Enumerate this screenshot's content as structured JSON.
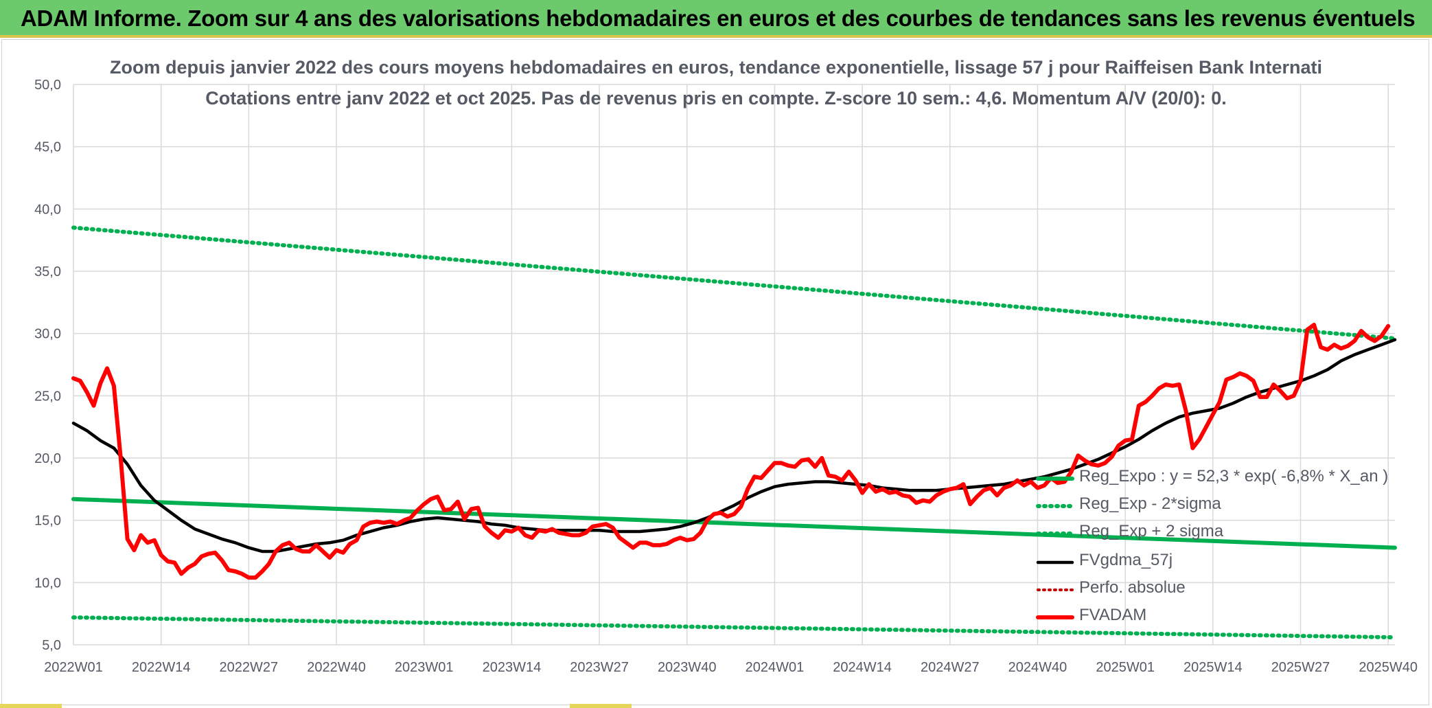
{
  "banner": {
    "title": "ADAM Informe. Zoom sur 4 ans des valorisations hebdomadaires en euros et des courbes de tendances sans les revenus éventuels"
  },
  "colors": {
    "banner_bg": "#6cc96c",
    "reg_expo": "#00b050",
    "fvgdma": "#000000",
    "fvadam": "#ff0000",
    "perfo": "#c00000",
    "text": "#555a64",
    "grid": "#d9d9d9"
  },
  "chart_data": {
    "type": "line",
    "title": "Zoom depuis janvier 2022 des cours moyens hebdomadaires en euros, tendance exponentielle, lissage 57 j pour Raiffeisen Bank Internati",
    "subtitle": "Cotations entre janv 2022 et oct 2025. Pas de revenus pris en compte. Z-score 10 sem.: 4,6. Momentum A/V (20/0): 0.",
    "xlabel": "",
    "ylabel": "",
    "ylim": [
      5,
      50
    ],
    "yticks": [
      "50,0",
      "45,0",
      "40,0",
      "35,0",
      "30,0",
      "25,0",
      "20,0",
      "15,0",
      "10,0",
      "5,0"
    ],
    "ytick_values": [
      50,
      45,
      40,
      35,
      30,
      25,
      20,
      15,
      10,
      5
    ],
    "xlim": [
      0,
      196
    ],
    "xticks": [
      "2022W01",
      "2022W14",
      "2022W27",
      "2022W40",
      "2023W01",
      "2023W14",
      "2023W27",
      "2023W40",
      "2024W01",
      "2024W14",
      "2024W27",
      "2024W40",
      "2025W01",
      "2025W14",
      "2025W27",
      "2025W40"
    ],
    "xtick_positions": [
      0,
      13,
      26,
      39,
      52,
      65,
      78,
      91,
      104,
      117,
      130,
      143,
      156,
      169,
      182,
      195
    ],
    "grid": true,
    "legend_position": "bottom-right",
    "series": [
      {
        "name": "Reg_Expo : y = 52,3 * exp( -6,8% *  X_an )",
        "style": "solid-green",
        "points": [
          [
            0,
            16.7
          ],
          [
            196,
            12.8
          ]
        ]
      },
      {
        "name": "Reg_Exp - 2*sigma",
        "style": "dotted-green",
        "points": [
          [
            0,
            7.2
          ],
          [
            196,
            5.6
          ]
        ]
      },
      {
        "name": "Reg_Exp + 2 sigma",
        "style": "dotted-green",
        "points": [
          [
            0,
            38.5
          ],
          [
            196,
            29.6
          ]
        ]
      },
      {
        "name": "FVgdma_57j",
        "style": "solid-black",
        "points": [
          [
            0,
            22.8
          ],
          [
            2,
            22.2
          ],
          [
            4,
            21.4
          ],
          [
            6,
            20.8
          ],
          [
            8,
            19.5
          ],
          [
            10,
            17.8
          ],
          [
            12,
            16.6
          ],
          [
            14,
            15.8
          ],
          [
            16,
            15.0
          ],
          [
            18,
            14.3
          ],
          [
            20,
            13.9
          ],
          [
            22,
            13.5
          ],
          [
            24,
            13.2
          ],
          [
            26,
            12.8
          ],
          [
            28,
            12.5
          ],
          [
            30,
            12.5
          ],
          [
            32,
            12.7
          ],
          [
            34,
            12.9
          ],
          [
            36,
            13.1
          ],
          [
            38,
            13.2
          ],
          [
            40,
            13.4
          ],
          [
            42,
            13.8
          ],
          [
            44,
            14.1
          ],
          [
            46,
            14.4
          ],
          [
            48,
            14.6
          ],
          [
            50,
            14.9
          ],
          [
            52,
            15.1
          ],
          [
            54,
            15.2
          ],
          [
            56,
            15.1
          ],
          [
            58,
            15.0
          ],
          [
            60,
            14.9
          ],
          [
            62,
            14.7
          ],
          [
            64,
            14.6
          ],
          [
            66,
            14.4
          ],
          [
            68,
            14.3
          ],
          [
            70,
            14.2
          ],
          [
            72,
            14.2
          ],
          [
            74,
            14.2
          ],
          [
            76,
            14.2
          ],
          [
            78,
            14.2
          ],
          [
            80,
            14.1
          ],
          [
            82,
            14.1
          ],
          [
            84,
            14.1
          ],
          [
            86,
            14.2
          ],
          [
            88,
            14.3
          ],
          [
            90,
            14.5
          ],
          [
            92,
            14.8
          ],
          [
            94,
            15.2
          ],
          [
            96,
            15.7
          ],
          [
            98,
            16.2
          ],
          [
            100,
            16.8
          ],
          [
            102,
            17.3
          ],
          [
            104,
            17.7
          ],
          [
            106,
            17.9
          ],
          [
            108,
            18.0
          ],
          [
            110,
            18.1
          ],
          [
            112,
            18.1
          ],
          [
            114,
            18.0
          ],
          [
            116,
            17.9
          ],
          [
            118,
            17.8
          ],
          [
            120,
            17.6
          ],
          [
            122,
            17.5
          ],
          [
            124,
            17.4
          ],
          [
            126,
            17.4
          ],
          [
            128,
            17.4
          ],
          [
            130,
            17.5
          ],
          [
            132,
            17.6
          ],
          [
            134,
            17.7
          ],
          [
            136,
            17.8
          ],
          [
            138,
            17.9
          ],
          [
            140,
            18.1
          ],
          [
            142,
            18.3
          ],
          [
            144,
            18.5
          ],
          [
            146,
            18.8
          ],
          [
            148,
            19.1
          ],
          [
            150,
            19.5
          ],
          [
            152,
            19.9
          ],
          [
            154,
            20.4
          ],
          [
            156,
            20.9
          ],
          [
            158,
            21.5
          ],
          [
            160,
            22.2
          ],
          [
            162,
            22.8
          ],
          [
            164,
            23.3
          ],
          [
            166,
            23.6
          ],
          [
            168,
            23.8
          ],
          [
            170,
            24.0
          ],
          [
            172,
            24.4
          ],
          [
            174,
            24.9
          ],
          [
            176,
            25.3
          ],
          [
            178,
            25.6
          ],
          [
            180,
            25.9
          ],
          [
            182,
            26.2
          ],
          [
            184,
            26.6
          ],
          [
            186,
            27.1
          ],
          [
            188,
            27.8
          ],
          [
            190,
            28.3
          ],
          [
            192,
            28.7
          ],
          [
            194,
            29.1
          ],
          [
            196,
            29.5
          ]
        ]
      },
      {
        "name": "Perfo. absolue",
        "style": "dotted-red",
        "points": []
      },
      {
        "name": "FVADAM",
        "style": "solid-red",
        "points": [
          [
            0,
            26.4
          ],
          [
            1,
            26.2
          ],
          [
            2,
            25.3
          ],
          [
            3,
            24.2
          ],
          [
            4,
            26.0
          ],
          [
            5,
            27.2
          ],
          [
            6,
            25.8
          ],
          [
            7,
            20.0
          ],
          [
            8,
            13.5
          ],
          [
            9,
            12.6
          ],
          [
            10,
            13.8
          ],
          [
            11,
            13.2
          ],
          [
            12,
            13.4
          ],
          [
            13,
            12.2
          ],
          [
            14,
            11.7
          ],
          [
            15,
            11.6
          ],
          [
            16,
            10.7
          ],
          [
            17,
            11.2
          ],
          [
            18,
            11.5
          ],
          [
            19,
            12.1
          ],
          [
            20,
            12.3
          ],
          [
            21,
            12.4
          ],
          [
            22,
            11.8
          ],
          [
            23,
            11.0
          ],
          [
            24,
            10.9
          ],
          [
            25,
            10.7
          ],
          [
            26,
            10.4
          ],
          [
            27,
            10.4
          ],
          [
            28,
            10.9
          ],
          [
            29,
            11.5
          ],
          [
            30,
            12.5
          ],
          [
            31,
            13.0
          ],
          [
            32,
            13.2
          ],
          [
            33,
            12.7
          ],
          [
            34,
            12.5
          ],
          [
            35,
            12.5
          ],
          [
            36,
            13.0
          ],
          [
            37,
            12.5
          ],
          [
            38,
            12.0
          ],
          [
            39,
            12.6
          ],
          [
            40,
            12.4
          ],
          [
            41,
            13.1
          ],
          [
            42,
            13.4
          ],
          [
            43,
            14.5
          ],
          [
            44,
            14.8
          ],
          [
            45,
            14.9
          ],
          [
            46,
            14.8
          ],
          [
            47,
            14.9
          ],
          [
            48,
            14.7
          ],
          [
            49,
            15.0
          ],
          [
            50,
            15.2
          ],
          [
            51,
            15.8
          ],
          [
            52,
            16.3
          ],
          [
            53,
            16.7
          ],
          [
            54,
            16.9
          ],
          [
            55,
            15.8
          ],
          [
            56,
            15.9
          ],
          [
            57,
            16.5
          ],
          [
            58,
            15.1
          ],
          [
            59,
            15.9
          ],
          [
            60,
            16.0
          ],
          [
            61,
            14.5
          ],
          [
            62,
            14.0
          ],
          [
            63,
            13.6
          ],
          [
            64,
            14.2
          ],
          [
            65,
            14.1
          ],
          [
            66,
            14.4
          ],
          [
            67,
            13.8
          ],
          [
            68,
            13.6
          ],
          [
            69,
            14.2
          ],
          [
            70,
            14.1
          ],
          [
            71,
            14.3
          ],
          [
            72,
            14.0
          ],
          [
            73,
            13.9
          ],
          [
            74,
            13.8
          ],
          [
            75,
            13.8
          ],
          [
            76,
            14.0
          ],
          [
            77,
            14.5
          ],
          [
            78,
            14.6
          ],
          [
            79,
            14.7
          ],
          [
            80,
            14.4
          ],
          [
            81,
            13.6
          ],
          [
            82,
            13.2
          ],
          [
            83,
            12.8
          ],
          [
            84,
            13.2
          ],
          [
            85,
            13.2
          ],
          [
            86,
            13.0
          ],
          [
            87,
            13.0
          ],
          [
            88,
            13.1
          ],
          [
            89,
            13.4
          ],
          [
            90,
            13.6
          ],
          [
            91,
            13.4
          ],
          [
            92,
            13.5
          ],
          [
            93,
            14.0
          ],
          [
            94,
            15.0
          ],
          [
            95,
            15.5
          ],
          [
            96,
            15.6
          ],
          [
            97,
            15.3
          ],
          [
            98,
            15.5
          ],
          [
            99,
            16.1
          ],
          [
            100,
            17.5
          ],
          [
            101,
            18.5
          ],
          [
            102,
            18.4
          ],
          [
            103,
            19.0
          ],
          [
            104,
            19.6
          ],
          [
            105,
            19.6
          ],
          [
            106,
            19.4
          ],
          [
            107,
            19.3
          ],
          [
            108,
            19.8
          ],
          [
            109,
            19.9
          ],
          [
            110,
            19.3
          ],
          [
            111,
            20.0
          ],
          [
            112,
            18.6
          ],
          [
            113,
            18.5
          ],
          [
            114,
            18.2
          ],
          [
            115,
            18.9
          ],
          [
            116,
            18.2
          ],
          [
            117,
            17.2
          ],
          [
            118,
            17.9
          ],
          [
            119,
            17.3
          ],
          [
            120,
            17.5
          ],
          [
            121,
            17.2
          ],
          [
            122,
            17.3
          ],
          [
            123,
            17.0
          ],
          [
            124,
            16.9
          ],
          [
            125,
            16.4
          ],
          [
            126,
            16.6
          ],
          [
            127,
            16.5
          ],
          [
            128,
            17.0
          ],
          [
            129,
            17.3
          ],
          [
            130,
            17.5
          ],
          [
            131,
            17.6
          ],
          [
            132,
            17.9
          ],
          [
            133,
            16.3
          ],
          [
            134,
            16.9
          ],
          [
            135,
            17.4
          ],
          [
            136,
            17.6
          ],
          [
            137,
            17.0
          ],
          [
            138,
            17.6
          ],
          [
            139,
            17.8
          ],
          [
            140,
            18.2
          ],
          [
            141,
            17.8
          ],
          [
            142,
            18.1
          ],
          [
            143,
            17.6
          ],
          [
            144,
            17.8
          ],
          [
            145,
            18.4
          ],
          [
            146,
            18.0
          ],
          [
            147,
            18.1
          ],
          [
            148,
            18.9
          ],
          [
            149,
            20.2
          ],
          [
            150,
            19.8
          ],
          [
            151,
            19.5
          ],
          [
            152,
            19.4
          ],
          [
            153,
            19.6
          ],
          [
            154,
            20.1
          ],
          [
            155,
            21.0
          ],
          [
            156,
            21.4
          ],
          [
            157,
            21.5
          ],
          [
            158,
            24.2
          ],
          [
            159,
            24.5
          ],
          [
            160,
            25.0
          ],
          [
            161,
            25.6
          ],
          [
            162,
            25.9
          ],
          [
            163,
            25.8
          ],
          [
            164,
            25.9
          ],
          [
            165,
            23.8
          ],
          [
            166,
            20.8
          ],
          [
            167,
            21.5
          ],
          [
            168,
            22.5
          ],
          [
            169,
            23.5
          ],
          [
            170,
            24.5
          ],
          [
            171,
            26.3
          ],
          [
            172,
            26.5
          ],
          [
            173,
            26.8
          ],
          [
            174,
            26.6
          ],
          [
            175,
            26.2
          ],
          [
            176,
            24.9
          ],
          [
            177,
            24.9
          ],
          [
            178,
            25.9
          ],
          [
            179,
            25.4
          ],
          [
            180,
            24.8
          ],
          [
            181,
            25.0
          ],
          [
            182,
            26.2
          ],
          [
            183,
            30.3
          ],
          [
            184,
            30.7
          ],
          [
            185,
            28.9
          ],
          [
            186,
            28.7
          ],
          [
            187,
            29.1
          ],
          [
            188,
            28.8
          ],
          [
            189,
            29.0
          ],
          [
            190,
            29.4
          ],
          [
            191,
            30.2
          ],
          [
            192,
            29.7
          ],
          [
            193,
            29.4
          ],
          [
            194,
            29.8
          ],
          [
            195,
            30.6
          ]
        ]
      }
    ]
  }
}
